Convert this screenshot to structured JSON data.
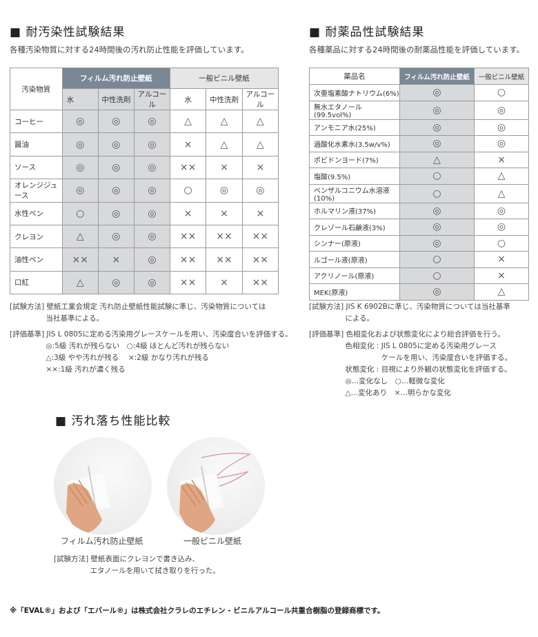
{
  "left": {
    "title": "■ 耐汚染性試験結果",
    "subtitle": "各種汚染物質に対する24時間後の汚れ防止性能を評価しています。",
    "table": {
      "corner": "汚染物質",
      "group_film": "フィルム汚れ防止壁紙",
      "group_general": "一般ビニル壁紙",
      "subheaders": [
        "水",
        "中性洗剤",
        "アルコール",
        "水",
        "中性洗剤",
        "アルコール"
      ],
      "rows": [
        {
          "name": "コーヒー",
          "values": [
            "◎",
            "◎",
            "◎",
            "△",
            "△",
            "△"
          ]
        },
        {
          "name": "醤油",
          "values": [
            "◎",
            "◎",
            "◎",
            "×",
            "△",
            "△"
          ]
        },
        {
          "name": "ソース",
          "values": [
            "◎",
            "◎",
            "◎",
            "××",
            "×",
            "×"
          ]
        },
        {
          "name": "オレンジジュース",
          "values": [
            "◎",
            "◎",
            "◎",
            "○",
            "◎",
            "◎"
          ]
        },
        {
          "name": "水性ペン",
          "values": [
            "○",
            "◎",
            "◎",
            "×",
            "×",
            "×"
          ]
        },
        {
          "name": "クレヨン",
          "values": [
            "△",
            "◎",
            "◎",
            "××",
            "××",
            "××"
          ]
        },
        {
          "name": "油性ペン",
          "values": [
            "××",
            "×",
            "◎",
            "××",
            "××",
            "××"
          ]
        },
        {
          "name": "口紅",
          "values": [
            "△",
            "◎",
            "◎",
            "××",
            "×",
            "××"
          ]
        }
      ]
    },
    "notes": [
      "[試験方法] 壁紙工業会規定 汚れ防止壁紙性能試験に準じ、汚染物質については",
      "　　　　　当社基準による。",
      "[評価基準] JIS L 0805に定める汚染用グレースケールを用い、汚染度合いを評価する。",
      "　　　　　◎:5級 汚れが残らない　○:4級 ほとんど汚れが残らない",
      "　　　　　△:3級 やや汚れが残る　 ×:2級 かなり汚れが残る",
      "　　　　　××:1級 汚れが濃く残る"
    ]
  },
  "right": {
    "title": "■ 耐薬品性試験結果",
    "subtitle": "各種薬品に対する24時間後の耐薬品性能を評価しています。",
    "table": {
      "headers": [
        "薬品名",
        "フィルム汚れ防止壁紙",
        "一般ビニル壁紙"
      ],
      "rows": [
        {
          "name": "次亜塩素酸ナトリウム(6%)",
          "values": [
            "◎",
            "○"
          ]
        },
        {
          "name": "無水エタノール(99.5vol%)",
          "values": [
            "◎",
            "◎"
          ]
        },
        {
          "name": "アンモニア水(25%)",
          "values": [
            "◎",
            "◎"
          ]
        },
        {
          "name": "過酸化水素水(3.5w/v%)",
          "values": [
            "◎",
            "◎"
          ]
        },
        {
          "name": "ポビドンヨード(7%)",
          "values": [
            "△",
            "×"
          ]
        },
        {
          "name": "塩酸(9.5%)",
          "values": [
            "○",
            "△"
          ]
        },
        {
          "name": "ベンザルコニウム水溶液(10%)",
          "values": [
            "○",
            "△"
          ]
        },
        {
          "name": "ホルマリン液(37%)",
          "values": [
            "◎",
            "◎"
          ]
        },
        {
          "name": "クレゾール石鹸液(3%)",
          "values": [
            "◎",
            "◎"
          ]
        },
        {
          "name": "シンナー(原液)",
          "values": [
            "◎",
            "○"
          ]
        },
        {
          "name": "ルゴール液(原液)",
          "values": [
            "○",
            "×"
          ]
        },
        {
          "name": "アクリノール(原液)",
          "values": [
            "○",
            "×"
          ]
        },
        {
          "name": "MEK(原液)",
          "values": [
            "◎",
            "△"
          ]
        }
      ]
    },
    "notes": [
      "[試験方法] JIS K 6902Bに準じ、汚染物質については当社基準",
      "　　　　　による。",
      "[評価基準] 色相変化および状態変化により総合評価を行う。",
      "　　　　　色相変化 : JIS L 0805に定める汚染用グレース",
      "　　　　　　　　　　ケールを用い、汚染度合いを評価する。",
      "　　　　　状態変化 : 目視により外観の状態変化を評価する。",
      "　　　　　◎…変化なし　○…軽微な変化",
      "　　　　　△…変化あり　×…明らかな変化"
    ]
  },
  "compare": {
    "title": "■ 汚れ落ち性能比較",
    "captions": [
      "フィルム汚れ防止壁紙",
      "一般ビニル壁紙"
    ],
    "notes": [
      "[試験方法] 壁紙表面にクレヨンで書き込み、",
      "　　　　　エタノールを用いて拭き取りを行った。"
    ]
  },
  "footnote": "※「EVAL®」および「エバール®」は株式会社クラレのエチレン - ビニルアルコール共重合樹脂の登録商標です。",
  "colors": {
    "film_header": "#7a8794",
    "film_cell": "#d8d9db",
    "general_header": "#e6e6e6"
  }
}
